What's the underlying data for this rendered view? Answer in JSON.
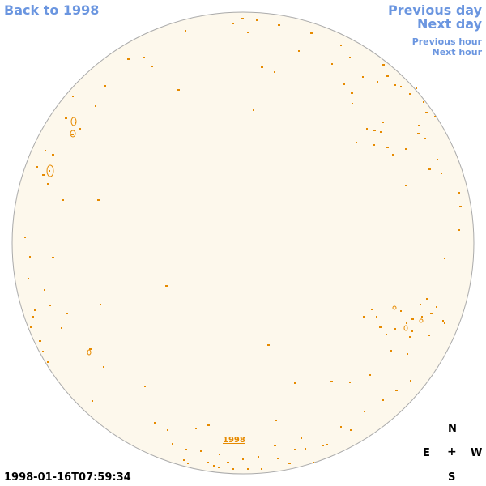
{
  "nav": {
    "back_label": "Back to 1998",
    "prev_day_label": "Previous day",
    "next_day_label": "Next day",
    "prev_hour_label": "Previous hour",
    "next_hour_label": "Next hour"
  },
  "compass": {
    "north": "N",
    "east": "E",
    "center": "+",
    "west": "W",
    "south": "S"
  },
  "timestamp": "1998-01-16T07:59:34",
  "year_label": "1998",
  "colors": {
    "disk_fill": "#fdf8ec",
    "disk_stroke": "#aaaaaa",
    "contour": "#e68a00",
    "link": "#6b96e0"
  }
}
